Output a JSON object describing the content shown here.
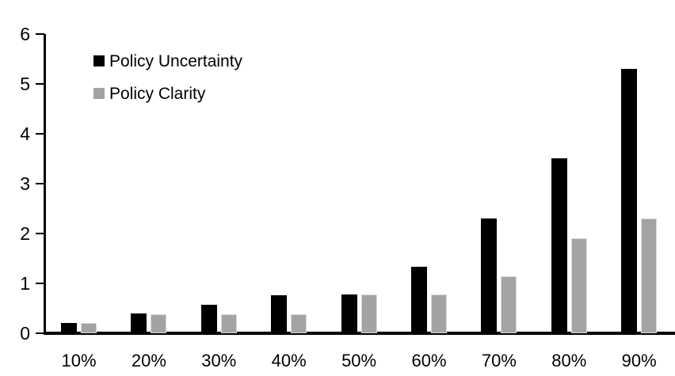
{
  "chart_data": {
    "type": "bar",
    "title": "",
    "xlabel": "",
    "ylabel": "",
    "categories": [
      "10%",
      "20%",
      "30%",
      "40%",
      "50%",
      "60%",
      "70%",
      "80%",
      "90%"
    ],
    "series": [
      {
        "name": "Policy Uncertainty",
        "color": "#000000",
        "values": [
          0.2,
          0.4,
          0.57,
          0.76,
          0.78,
          1.33,
          2.3,
          3.5,
          5.3
        ]
      },
      {
        "name": "Policy Clarity",
        "color": "#a3a3a3",
        "values": [
          0.2,
          0.38,
          0.38,
          0.38,
          0.77,
          0.77,
          1.15,
          1.9,
          2.3
        ]
      }
    ],
    "ylim": [
      0,
      6
    ],
    "yticks": [
      "0",
      "1",
      "2",
      "3",
      "4",
      "5",
      "6"
    ],
    "grid": false,
    "legend_position": "top-left",
    "axis_color": "#000000",
    "background_color": "#ffffff"
  }
}
